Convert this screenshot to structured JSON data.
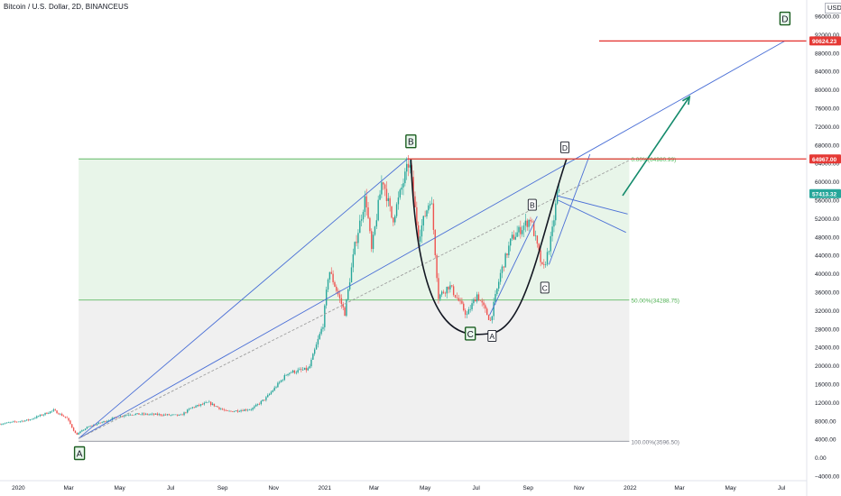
{
  "chart_title": "Bitcoin / U.S. Dollar, 2D, BINANCEUS",
  "currency_label": "USD",
  "colors": {
    "up": "#26a69a",
    "down": "#ef5350",
    "resistance": "#e53935",
    "fib_zone_upper": "#e8f5e9",
    "fib_zone_lower": "#f0f0f0",
    "fib_line": "#4caf50",
    "trend_blue": "#4a6fd6",
    "arrow": "#138a6b",
    "axis_text": "#131722"
  },
  "chart_data": {
    "type": "candlestick",
    "y_scale": "linear",
    "ylim": [
      -5000,
      98000
    ],
    "xlim": [
      "2019-12-10",
      "2022-07-31"
    ],
    "y_ticks": [
      96000,
      92000,
      88000,
      84000,
      80000,
      76000,
      72000,
      68000,
      64000,
      60000,
      56000,
      52000,
      48000,
      44000,
      40000,
      36000,
      32000,
      28000,
      24000,
      20000,
      16000,
      12000,
      8000,
      4000,
      0,
      -4000
    ],
    "y_tick_labels": [
      "96000.00",
      "92000.00",
      "88000.00",
      "84000.00",
      "80000.00",
      "76000.00",
      "72000.00",
      "68000.00",
      "64000.00",
      "60000.00",
      "56000.00",
      "52000.00",
      "48000.00",
      "44000.00",
      "40000.00",
      "36000.00",
      "32000.00",
      "28000.00",
      "24000.00",
      "20000.00",
      "16000.00",
      "12000.00",
      "8000.00",
      "4000.00",
      "0.00",
      "−4000.00"
    ],
    "x_ticks": [
      {
        "date": "2020-01-01",
        "label": "2020"
      },
      {
        "date": "2020-03-01",
        "label": "Mar"
      },
      {
        "date": "2020-05-01",
        "label": "May"
      },
      {
        "date": "2020-07-01",
        "label": "Jul"
      },
      {
        "date": "2020-09-01",
        "label": "Sep"
      },
      {
        "date": "2020-11-01",
        "label": "Nov"
      },
      {
        "date": "2021-01-01",
        "label": "2021"
      },
      {
        "date": "2021-03-01",
        "label": "Mar"
      },
      {
        "date": "2021-05-01",
        "label": "May"
      },
      {
        "date": "2021-07-01",
        "label": "Jul"
      },
      {
        "date": "2021-09-01",
        "label": "Sep"
      },
      {
        "date": "2021-11-01",
        "label": "Nov"
      },
      {
        "date": "2022-01-01",
        "label": "2022"
      },
      {
        "date": "2022-03-01",
        "label": "Mar"
      },
      {
        "date": "2022-05-01",
        "label": "May"
      },
      {
        "date": "2022-07-01",
        "label": "Jul"
      }
    ],
    "price_path": [
      [
        "2019-12-10",
        7300
      ],
      [
        "2020-01-15",
        8200
      ],
      [
        "2020-02-14",
        10300
      ],
      [
        "2020-03-01",
        8600
      ],
      [
        "2020-03-12",
        5000
      ],
      [
        "2020-03-25",
        6600
      ],
      [
        "2020-04-29",
        8800
      ],
      [
        "2020-05-15",
        9500
      ],
      [
        "2020-06-15",
        9400
      ],
      [
        "2020-07-15",
        9200
      ],
      [
        "2020-07-28",
        10900
      ],
      [
        "2020-08-17",
        12000
      ],
      [
        "2020-09-08",
        10000
      ],
      [
        "2020-10-08",
        10600
      ],
      [
        "2020-10-25",
        13000
      ],
      [
        "2020-11-20",
        18500
      ],
      [
        "2020-12-15",
        19300
      ],
      [
        "2021-01-01",
        29000
      ],
      [
        "2021-01-08",
        41000
      ],
      [
        "2021-01-27",
        31500
      ],
      [
        "2021-02-08",
        46000
      ],
      [
        "2021-02-21",
        57000
      ],
      [
        "2021-02-28",
        45000
      ],
      [
        "2021-03-13",
        61000
      ],
      [
        "2021-03-25",
        51500
      ],
      [
        "2021-04-14",
        64500
      ],
      [
        "2021-04-25",
        48000
      ],
      [
        "2021-05-10",
        57000
      ],
      [
        "2021-05-19",
        35000
      ],
      [
        "2021-06-01",
        37500
      ],
      [
        "2021-06-22",
        31000
      ],
      [
        "2021-07-04",
        35500
      ],
      [
        "2021-07-20",
        29800
      ],
      [
        "2021-08-01",
        40000
      ],
      [
        "2021-08-14",
        47500
      ],
      [
        "2021-09-06",
        52000
      ],
      [
        "2021-09-21",
        40500
      ],
      [
        "2021-10-01",
        48000
      ],
      [
        "2021-10-08",
        57413
      ]
    ],
    "horizontal_levels": [
      {
        "value": 90624.23,
        "label": "90624.23"
      },
      {
        "value": 64967.0,
        "label": "64967.00"
      }
    ],
    "last_price": {
      "value": 57413.32,
      "label": "57413.32"
    },
    "fibonacci": {
      "levels": [
        {
          "ratio": 0.0,
          "value": 64980.99,
          "label": "0.00%(64980.99)"
        },
        {
          "ratio": 0.5,
          "value": 34288.75,
          "label": "50.00%(34288.75)"
        },
        {
          "ratio": 1.0,
          "value": 3596.5,
          "label": "100.00%(3596.50)"
        }
      ],
      "from_date": "2020-03-13",
      "to_date": "2021-12-31"
    },
    "wave_labels": [
      {
        "text": "A",
        "date": "2020-03-14",
        "value": 1000,
        "style": "green-box"
      },
      {
        "text": "B",
        "date": "2021-04-14",
        "value": 68800,
        "style": "green-box"
      },
      {
        "text": "C",
        "date": "2021-06-24",
        "value": 27000,
        "style": "green-box"
      },
      {
        "text": "D",
        "date": "2022-07-05",
        "value": 95500,
        "style": "green-box"
      },
      {
        "text": "A",
        "date": "2021-07-20",
        "value": 26500,
        "style": "black-box"
      },
      {
        "text": "B",
        "date": "2021-09-06",
        "value": 55000,
        "style": "black-box"
      },
      {
        "text": "C",
        "date": "2021-09-21",
        "value": 37000,
        "style": "black-box"
      },
      {
        "text": "D",
        "date": "2021-10-15",
        "value": 67500,
        "style": "black-box"
      }
    ],
    "lines": [
      {
        "kind": "trend",
        "from": [
          "2020-03-13",
          4200
        ],
        "to": [
          "2021-04-10",
          65000
        ]
      },
      {
        "kind": "trend",
        "from": [
          "2020-03-13",
          4200
        ],
        "to": [
          "2022-07-05",
          90624
        ]
      },
      {
        "kind": "dashed-trend",
        "from": [
          "2020-03-13",
          4200
        ],
        "to": [
          "2021-12-31",
          64700
        ]
      },
      {
        "kind": "trend",
        "from": [
          "2021-07-17",
          31000
        ],
        "to": [
          "2021-09-12",
          52500
        ]
      },
      {
        "kind": "trend",
        "from": [
          "2021-10-07",
          56000
        ],
        "to": [
          "2021-12-27",
          49000
        ]
      },
      {
        "kind": "trend",
        "from": [
          "2021-09-26",
          42000
        ],
        "to": [
          "2021-11-14",
          66000
        ]
      },
      {
        "kind": "trend",
        "from": [
          "2021-10-05",
          57000
        ],
        "to": [
          "2021-12-29",
          53000
        ]
      },
      {
        "kind": "cup-curve",
        "from": [
          "2021-04-14",
          64967
        ],
        "bottom": [
          "2021-07-17",
          27000
        ],
        "to": [
          "2021-10-17",
          64967
        ]
      },
      {
        "kind": "arrow",
        "from": [
          "2021-12-23",
          57000
        ],
        "to": [
          "2022-03-13",
          78500
        ]
      }
    ]
  }
}
